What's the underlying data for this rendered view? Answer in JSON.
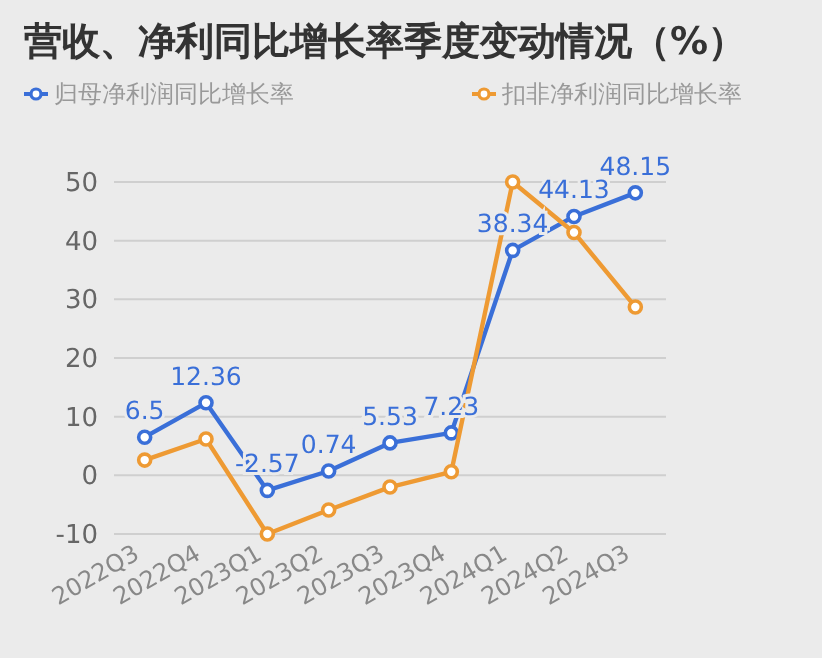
{
  "chart_data": {
    "type": "line",
    "title": "营收、净利同比增长率季度变动情况（%）",
    "categories": [
      "2022Q3",
      "2022Q4",
      "2023Q1",
      "2023Q2",
      "2023Q3",
      "2023Q4",
      "2024Q1",
      "2024Q2",
      "2024Q3"
    ],
    "series": [
      {
        "name": "归母净利润同比增长率",
        "color": "#3a6fd8",
        "values": [
          6.5,
          12.36,
          -2.57,
          0.74,
          5.53,
          7.23,
          38.34,
          44.13,
          48.15
        ],
        "value_labels": [
          "6.5",
          "12.36",
          "-2.57",
          "0.74",
          "5.53",
          "7.23",
          "38.34",
          "44.13",
          "48.15"
        ]
      },
      {
        "name": "扣非净利润同比增长率",
        "color": "#ee9a33",
        "values": [
          2.6,
          6.2,
          -10,
          -5.9,
          -2.0,
          0.6,
          50,
          41.4,
          28.7
        ]
      }
    ],
    "ylim": [
      -10,
      50
    ],
    "yticks": [
      -10,
      0,
      10,
      20,
      30,
      40,
      50
    ],
    "grid": "y",
    "legend": "top",
    "marker": "circle",
    "line_style": "solid"
  }
}
